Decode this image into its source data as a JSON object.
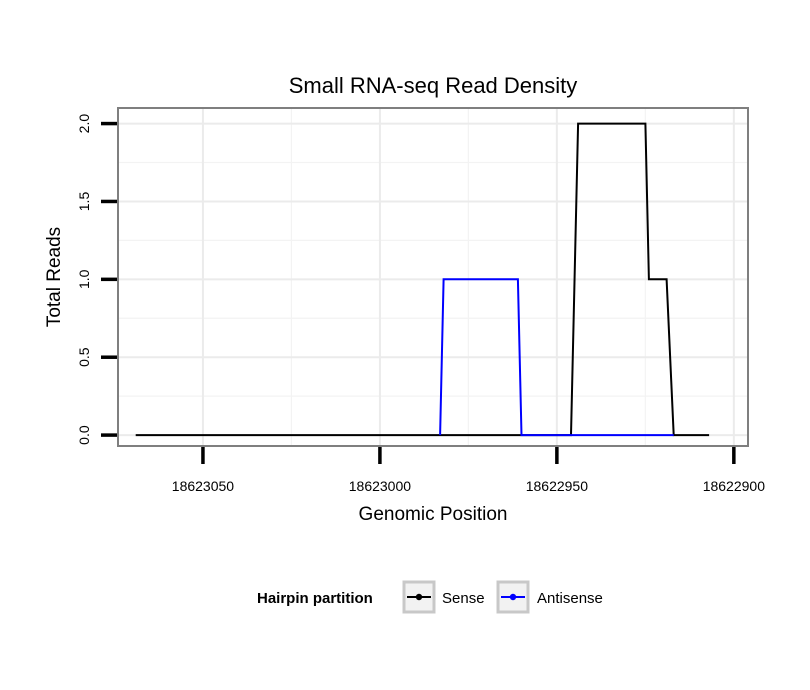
{
  "chart_data": {
    "type": "line",
    "title": "Small RNA-seq Read Density",
    "xlabel": "Genomic Position",
    "ylabel": "Total Reads",
    "xlim": [
      18623074,
      18622896
    ],
    "ylim": [
      -0.07,
      2.1
    ],
    "x_reversed": true,
    "x_ticks": [
      18623050,
      18623000,
      18622950,
      18622900
    ],
    "x_tick_labels": [
      "18623050",
      "18623000",
      "18622950",
      "18622900"
    ],
    "y_ticks": [
      0.0,
      0.5,
      1.0,
      1.5,
      2.0
    ],
    "y_tick_labels": [
      "0.0",
      "0.5",
      "1.0",
      "1.5",
      "2.0"
    ],
    "grid": true,
    "legend_title": "Hairpin partition",
    "legend_position": "bottom",
    "series": [
      {
        "name": "Sense",
        "color": "#000000",
        "x": [
          18623069,
          18622946,
          18622944,
          18622925,
          18622924,
          18622919,
          18622917,
          18622907
        ],
        "y": [
          0,
          0,
          2,
          2,
          1,
          1,
          0,
          0
        ]
      },
      {
        "name": "Antisense",
        "color": "#0000ff",
        "x": [
          18622983,
          18622982,
          18622961,
          18622960,
          18622917
        ],
        "y": [
          0,
          1,
          1,
          0,
          0
        ]
      }
    ]
  }
}
